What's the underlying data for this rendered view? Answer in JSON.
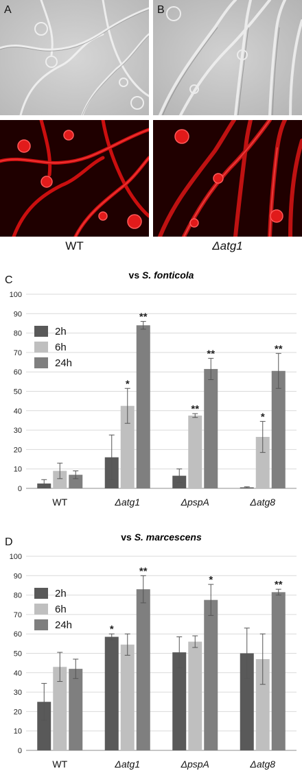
{
  "figure": {
    "panel_a_label": "A",
    "panel_b_label": "B",
    "caption_wt": "WT",
    "caption_mut": "Δatg1"
  },
  "chart_data": [
    {
      "panel_label": "C",
      "type": "bar",
      "title": "vs S. fonticola",
      "title_prefix": "vs ",
      "title_species": "S. fonticola",
      "categories": [
        "WT",
        "Δatg1",
        "ΔpspA",
        "Δatg8"
      ],
      "series": [
        {
          "name": "2h",
          "color": "#595959",
          "values": [
            2.5,
            16,
            6.5,
            0.5
          ],
          "err": [
            2,
            11.5,
            3.5,
            0.3
          ],
          "sig": [
            "",
            "",
            "",
            ""
          ]
        },
        {
          "name": "6h",
          "color": "#bfbfbf",
          "values": [
            9,
            42.5,
            37.5,
            26.5
          ],
          "err": [
            4,
            9,
            1,
            8
          ],
          "sig": [
            "",
            "*",
            "**",
            "*"
          ]
        },
        {
          "name": "24h",
          "color": "#7f7f7f",
          "values": [
            7,
            84,
            61.5,
            60.5
          ],
          "err": [
            2,
            2,
            5.5,
            9
          ],
          "sig": [
            "",
            "**",
            "**",
            "**"
          ]
        }
      ],
      "ylim": [
        0,
        100
      ],
      "yticks": [
        0,
        10,
        20,
        30,
        40,
        50,
        60,
        70,
        80,
        90,
        100
      ],
      "grid": true,
      "legend_position": "top-left"
    },
    {
      "panel_label": "D",
      "type": "bar",
      "title": "vs S. marcescens",
      "title_prefix": "vs ",
      "title_species": "S. marcescens",
      "categories": [
        "WT",
        "Δatg1",
        "ΔpspA",
        "Δatg8"
      ],
      "series": [
        {
          "name": "2h",
          "color": "#595959",
          "values": [
            25,
            58.5,
            50.5,
            50
          ],
          "err": [
            9.5,
            1.5,
            8,
            13
          ],
          "sig": [
            "",
            "*",
            "",
            ""
          ]
        },
        {
          "name": "6h",
          "color": "#bfbfbf",
          "values": [
            43,
            54.5,
            56,
            47
          ],
          "err": [
            7.5,
            5.5,
            3,
            13
          ],
          "sig": [
            "",
            "",
            "",
            ""
          ]
        },
        {
          "name": "24h",
          "color": "#7f7f7f",
          "values": [
            42,
            83,
            77.5,
            81.5
          ],
          "err": [
            5,
            7,
            8,
            1.5
          ],
          "sig": [
            "",
            "**",
            "*",
            "**"
          ]
        }
      ],
      "ylim": [
        0,
        100
      ],
      "yticks": [
        0,
        10,
        20,
        30,
        40,
        50,
        60,
        70,
        80,
        90,
        100
      ],
      "grid": true,
      "legend_position": "top-left"
    }
  ]
}
